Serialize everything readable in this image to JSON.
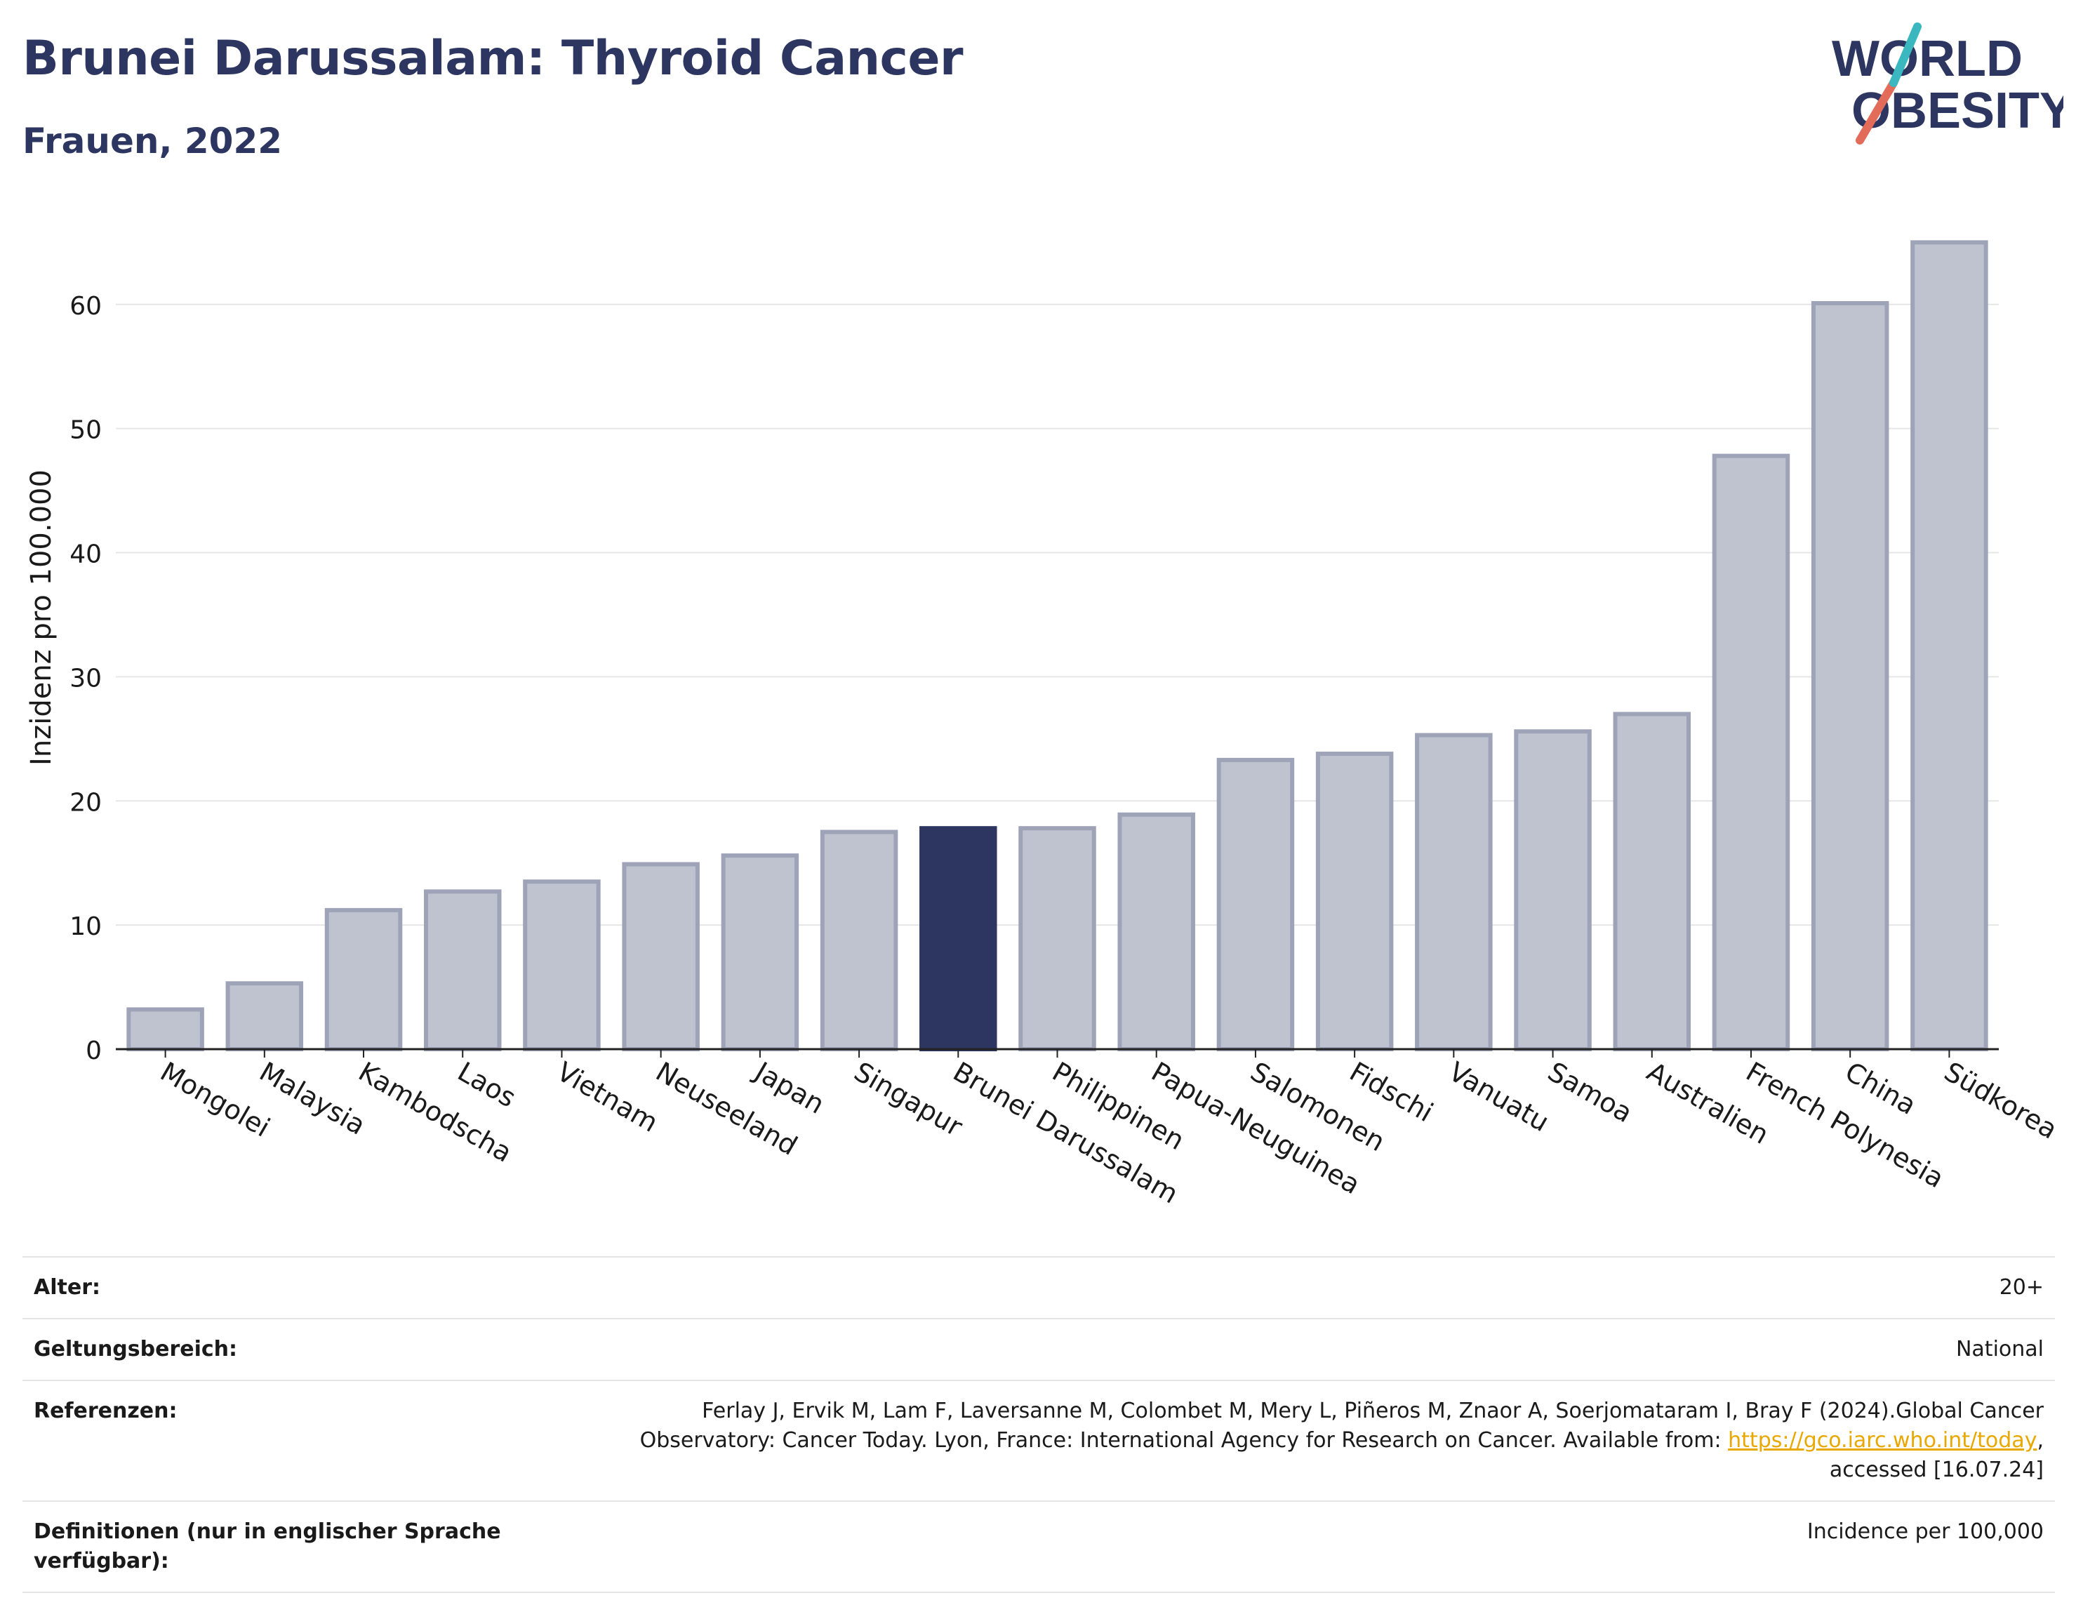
{
  "header": {
    "title": "Brunei Darussalam: Thyroid Cancer",
    "subtitle": "Frauen, 2022",
    "logo_line1": "WORLD",
    "logo_line2": "OBESITY"
  },
  "colors": {
    "highlight": "#2c3660",
    "bar_fill": "#bfc2cf",
    "bar_stroke": "#9ea3b8",
    "title": "#2c3660",
    "logo_teal": "#3bb7c0",
    "logo_coral": "#e26b5a",
    "link": "#e8a800"
  },
  "chart_data": {
    "type": "bar",
    "ylabel": "Inzidenz pro 100.000",
    "ylim": [
      0,
      67
    ],
    "yticks": [
      0,
      10,
      20,
      30,
      40,
      50,
      60
    ],
    "grid": true,
    "highlight_category": "Brunei Darussalam",
    "categories": [
      "Mongolei",
      "Malaysia",
      "Kambodscha",
      "Laos",
      "Vietnam",
      "Neuseeland",
      "Japan",
      "Singapur",
      "Brunei Darussalam",
      "Philippinen",
      "Papua-Neuguinea",
      "Salomonen",
      "Fidschi",
      "Vanuatu",
      "Samoa",
      "Australien",
      "French Polynesia",
      "China",
      "Südkorea"
    ],
    "values": [
      3.2,
      5.3,
      11.2,
      12.7,
      13.5,
      14.9,
      15.6,
      17.5,
      17.8,
      17.8,
      18.9,
      23.3,
      23.8,
      25.3,
      25.6,
      27.0,
      47.8,
      60.1,
      65.0
    ]
  },
  "meta": {
    "age_label": "Alter:",
    "age_value": "20+",
    "scope_label": "Geltungsbereich:",
    "scope_value": "National",
    "ref_label": "Referenzen:",
    "ref_text_1": "Ferlay J, Ervik M, Lam F, Laversanne M, Colombet M, Mery L, Piñeros M, Znaor A, Soerjomataram I, Bray F (2024).Global Cancer",
    "ref_text_2": "Observatory: Cancer Today. Lyon, France: International Agency for Research on Cancer. Available from: ",
    "ref_link": "https://gco.iarc.who.int/today",
    "ref_text_3": ",",
    "ref_text_4": "accessed [16.07.24]",
    "def_label": "Definitionen (nur in englischer Sprache verfügbar):",
    "def_value": "Incidence per 100,000"
  }
}
